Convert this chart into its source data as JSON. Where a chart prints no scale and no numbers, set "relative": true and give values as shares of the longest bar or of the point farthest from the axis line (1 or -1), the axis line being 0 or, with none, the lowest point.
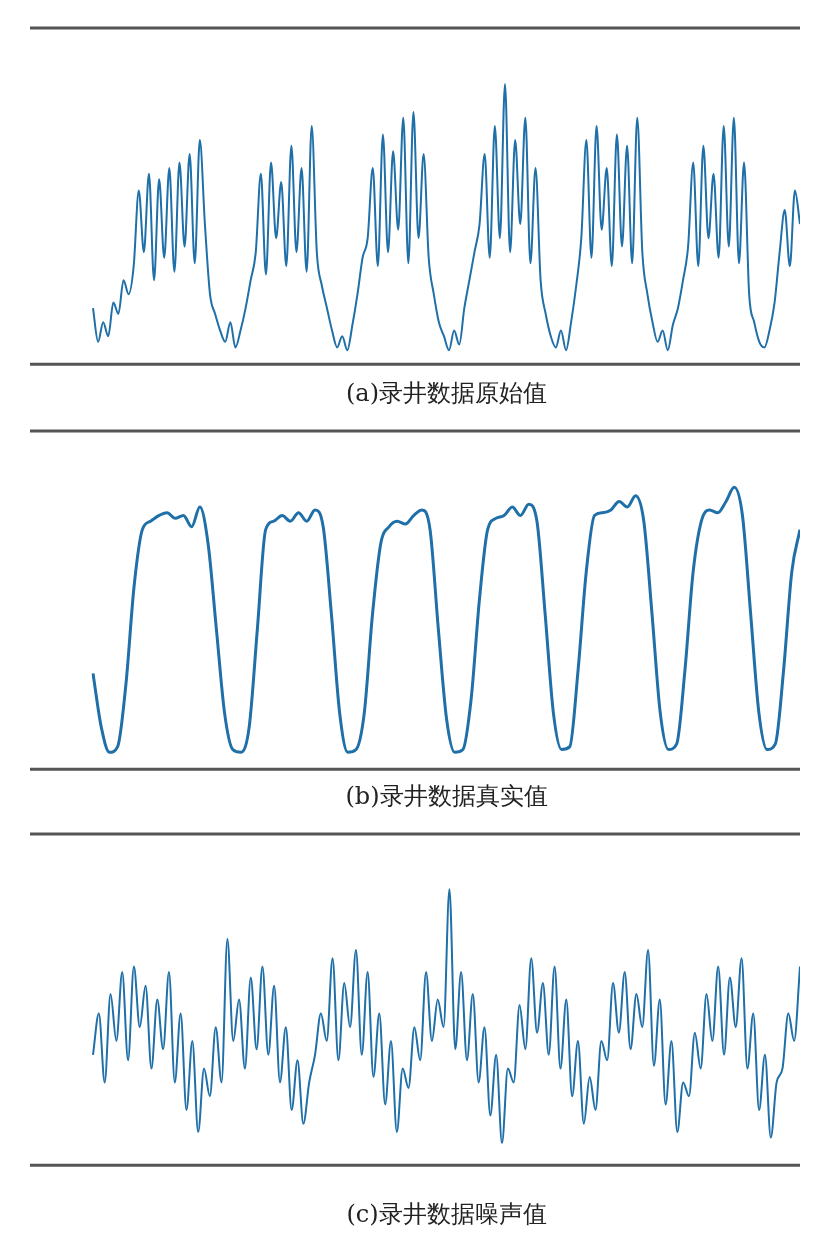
{
  "chart_data": [
    {
      "type": "line",
      "title": "(a)录井数据原始值",
      "relative": true,
      "categories": [
        null,
        null,
        null,
        null,
        null,
        null,
        null,
        null,
        null,
        null,
        null,
        null,
        null,
        null,
        null,
        null,
        null,
        null,
        null,
        null,
        null,
        null,
        null,
        null,
        null,
        null,
        null,
        null,
        null,
        null,
        null,
        null,
        null,
        null,
        null,
        null,
        null,
        null,
        null,
        null,
        null,
        null,
        null,
        null,
        null,
        null,
        null,
        null,
        null,
        null,
        null,
        null,
        null,
        null,
        null,
        null,
        null,
        null,
        null,
        null,
        null,
        null,
        null,
        null,
        null,
        null,
        null,
        null,
        null,
        null,
        null,
        null,
        null,
        null,
        null,
        null,
        null,
        null,
        null,
        null,
        null,
        null,
        null,
        null,
        null,
        null,
        null,
        null,
        null,
        null,
        null,
        null,
        null,
        null,
        null,
        null,
        null,
        null,
        null,
        null,
        null,
        null,
        null,
        null,
        null,
        null,
        null,
        null,
        null,
        null,
        null,
        null,
        null,
        null,
        null,
        null,
        null,
        null,
        null,
        null,
        null,
        null,
        null,
        null,
        null,
        null,
        null,
        null,
        null,
        null,
        null,
        null,
        null,
        null,
        null,
        null,
        null,
        null,
        null,
        null
      ],
      "series": [
        {
          "color": "#1f6fa8",
          "values": [
            0.2,
            0.08,
            0.15,
            0.1,
            0.22,
            0.18,
            0.3,
            0.25,
            0.35,
            0.62,
            0.4,
            0.68,
            0.3,
            0.66,
            0.38,
            0.7,
            0.33,
            0.72,
            0.42,
            0.75,
            0.36,
            0.8,
            0.5,
            0.25,
            0.18,
            0.12,
            0.08,
            0.15,
            0.06,
            0.12,
            0.2,
            0.3,
            0.4,
            0.68,
            0.32,
            0.72,
            0.45,
            0.65,
            0.35,
            0.78,
            0.4,
            0.7,
            0.33,
            0.85,
            0.4,
            0.28,
            0.2,
            0.12,
            0.06,
            0.1,
            0.05,
            0.14,
            0.25,
            0.38,
            0.45,
            0.7,
            0.35,
            0.82,
            0.4,
            0.76,
            0.48,
            0.88,
            0.36,
            0.9,
            0.45,
            0.75,
            0.38,
            0.25,
            0.15,
            0.1,
            0.05,
            0.12,
            0.07,
            0.2,
            0.3,
            0.4,
            0.5,
            0.75,
            0.38,
            0.85,
            0.45,
            1.0,
            0.4,
            0.8,
            0.5,
            0.88,
            0.36,
            0.7,
            0.3,
            0.18,
            0.1,
            0.06,
            0.12,
            0.05,
            0.15,
            0.28,
            0.45,
            0.8,
            0.38,
            0.85,
            0.48,
            0.7,
            0.35,
            0.82,
            0.42,
            0.78,
            0.36,
            0.88,
            0.4,
            0.25,
            0.15,
            0.08,
            0.12,
            0.05,
            0.14,
            0.2,
            0.3,
            0.42,
            0.72,
            0.35,
            0.78,
            0.45,
            0.68,
            0.38,
            0.85,
            0.42,
            0.88,
            0.36,
            0.72,
            0.25,
            0.15,
            0.08,
            0.06,
            0.12,
            0.22,
            0.4,
            0.55,
            0.35,
            0.62,
            0.5
          ]
        }
      ]
    },
    {
      "type": "line",
      "title": "(b)录井数据真实值",
      "relative": true,
      "categories": [
        null,
        null,
        null,
        null,
        null,
        null,
        null,
        null,
        null,
        null,
        null,
        null,
        null,
        null,
        null,
        null,
        null,
        null,
        null,
        null,
        null,
        null,
        null,
        null,
        null,
        null,
        null,
        null,
        null,
        null,
        null,
        null,
        null,
        null,
        null,
        null,
        null,
        null,
        null,
        null,
        null,
        null,
        null,
        null,
        null,
        null,
        null,
        null,
        null,
        null,
        null,
        null,
        null,
        null,
        null,
        null,
        null,
        null,
        null,
        null,
        null,
        null,
        null,
        null,
        null,
        null,
        null,
        null,
        null,
        null,
        null,
        null,
        null,
        null,
        null,
        null,
        null,
        null,
        null,
        null,
        null,
        null,
        null,
        null,
        null,
        null,
        null
      ],
      "series": [
        {
          "color": "#1f6fa8",
          "values": [
            0.34,
            0.15,
            0.06,
            0.08,
            0.3,
            0.65,
            0.85,
            0.88,
            0.9,
            0.91,
            0.89,
            0.9,
            0.86,
            0.93,
            0.8,
            0.5,
            0.2,
            0.07,
            0.06,
            0.15,
            0.5,
            0.85,
            0.88,
            0.9,
            0.88,
            0.91,
            0.88,
            0.92,
            0.86,
            0.55,
            0.2,
            0.06,
            0.07,
            0.2,
            0.55,
            0.8,
            0.86,
            0.88,
            0.87,
            0.9,
            0.92,
            0.85,
            0.5,
            0.18,
            0.06,
            0.07,
            0.25,
            0.6,
            0.85,
            0.89,
            0.9,
            0.93,
            0.9,
            0.94,
            0.88,
            0.55,
            0.2,
            0.07,
            0.08,
            0.35,
            0.7,
            0.9,
            0.91,
            0.92,
            0.95,
            0.93,
            0.97,
            0.88,
            0.55,
            0.2,
            0.07,
            0.09,
            0.35,
            0.7,
            0.88,
            0.92,
            0.91,
            0.95,
            1.0,
            0.9,
            0.55,
            0.2,
            0.07,
            0.09,
            0.35,
            0.7,
            0.85
          ]
        }
      ]
    },
    {
      "type": "line",
      "title": "(c)录井数据噪声值",
      "relative": true,
      "categories": [
        null,
        null,
        null,
        null,
        null,
        null,
        null,
        null,
        null,
        null,
        null,
        null,
        null,
        null,
        null,
        null,
        null,
        null,
        null,
        null,
        null,
        null,
        null,
        null,
        null,
        null,
        null,
        null,
        null,
        null,
        null,
        null,
        null,
        null,
        null,
        null,
        null,
        null,
        null,
        null,
        null,
        null,
        null,
        null,
        null,
        null,
        null,
        null,
        null,
        null,
        null,
        null,
        null,
        null,
        null,
        null,
        null,
        null,
        null,
        null,
        null,
        null,
        null,
        null,
        null,
        null,
        null,
        null,
        null,
        null,
        null,
        null,
        null,
        null,
        null,
        null,
        null,
        null,
        null,
        null,
        null,
        null,
        null,
        null,
        null,
        null,
        null,
        null,
        null,
        null,
        null,
        null,
        null,
        null,
        null,
        null,
        null,
        null,
        null,
        null,
        null,
        null,
        null,
        null,
        null,
        null,
        null,
        null,
        null,
        null,
        null,
        null,
        null,
        null,
        null,
        null,
        null,
        null,
        null,
        null,
        null,
        null
      ],
      "series": [
        {
          "color": "#1f6fa8",
          "values": [
            0.4,
            0.55,
            0.3,
            0.62,
            0.45,
            0.7,
            0.38,
            0.72,
            0.5,
            0.65,
            0.35,
            0.6,
            0.42,
            0.7,
            0.3,
            0.55,
            0.2,
            0.45,
            0.12,
            0.35,
            0.25,
            0.5,
            0.3,
            0.82,
            0.45,
            0.6,
            0.35,
            0.68,
            0.42,
            0.72,
            0.4,
            0.65,
            0.3,
            0.5,
            0.2,
            0.38,
            0.15,
            0.3,
            0.4,
            0.55,
            0.45,
            0.75,
            0.38,
            0.66,
            0.5,
            0.78,
            0.4,
            0.7,
            0.32,
            0.55,
            0.22,
            0.45,
            0.12,
            0.35,
            0.28,
            0.5,
            0.38,
            0.7,
            0.45,
            0.6,
            0.5,
            1.0,
            0.42,
            0.7,
            0.38,
            0.62,
            0.3,
            0.5,
            0.18,
            0.4,
            0.08,
            0.35,
            0.3,
            0.58,
            0.42,
            0.75,
            0.48,
            0.66,
            0.4,
            0.72,
            0.35,
            0.6,
            0.25,
            0.45,
            0.15,
            0.32,
            0.2,
            0.45,
            0.38,
            0.66,
            0.48,
            0.7,
            0.42,
            0.62,
            0.5,
            0.78,
            0.36,
            0.6,
            0.22,
            0.45,
            0.12,
            0.3,
            0.25,
            0.48,
            0.35,
            0.62,
            0.45,
            0.72,
            0.4,
            0.68,
            0.5,
            0.75,
            0.35,
            0.55,
            0.2,
            0.4,
            0.1,
            0.3,
            0.35,
            0.55,
            0.45,
            0.72
          ]
        }
      ]
    }
  ]
}
